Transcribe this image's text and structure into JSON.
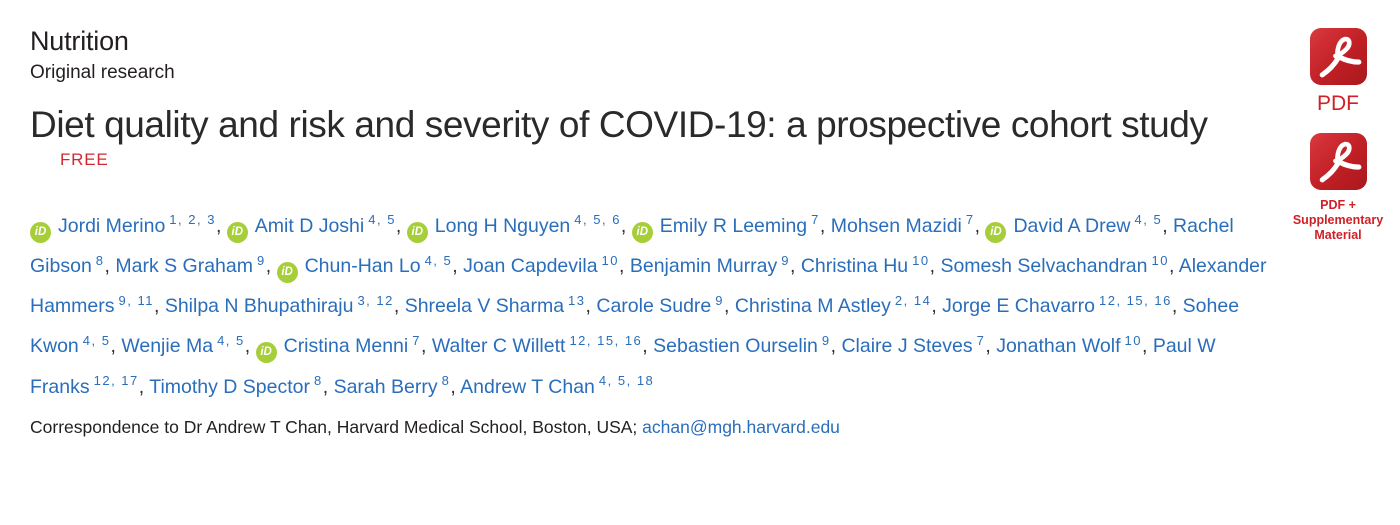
{
  "page": {
    "category": "Nutrition",
    "subcategory": "Original research",
    "title": "Diet quality and risk and severity of COVID-19: a prospective cohort study",
    "free_label": "FREE"
  },
  "authors": [
    {
      "name": "Jordi Merino",
      "orcid": true,
      "sups": "1, 2, 3"
    },
    {
      "name": "Amit D Joshi",
      "orcid": true,
      "sups": "4, 5"
    },
    {
      "name": "Long H Nguyen",
      "orcid": true,
      "sups": "4, 5, 6"
    },
    {
      "name": "Emily R Leeming",
      "orcid": true,
      "sups": "7"
    },
    {
      "name": "Mohsen Mazidi",
      "orcid": false,
      "sups": "7"
    },
    {
      "name": "David A Drew",
      "orcid": true,
      "sups": "4, 5"
    },
    {
      "name": "Rachel Gibson",
      "orcid": false,
      "sups": "8"
    },
    {
      "name": "Mark S Graham",
      "orcid": false,
      "sups": "9"
    },
    {
      "name": "Chun-Han Lo",
      "orcid": true,
      "sups": "4, 5"
    },
    {
      "name": "Joan Capdevila",
      "orcid": false,
      "sups": "10"
    },
    {
      "name": "Benjamin Murray",
      "orcid": false,
      "sups": "9"
    },
    {
      "name": "Christina Hu",
      "orcid": false,
      "sups": "10"
    },
    {
      "name": "Somesh Selvachandran",
      "orcid": false,
      "sups": "10"
    },
    {
      "name": "Alexander Hammers",
      "orcid": false,
      "sups": "9, 11"
    },
    {
      "name": "Shilpa N Bhupathiraju",
      "orcid": false,
      "sups": "3, 12"
    },
    {
      "name": "Shreela V Sharma",
      "orcid": false,
      "sups": "13"
    },
    {
      "name": "Carole Sudre",
      "orcid": false,
      "sups": "9"
    },
    {
      "name": "Christina M Astley",
      "orcid": false,
      "sups": "2, 14"
    },
    {
      "name": "Jorge E Chavarro",
      "orcid": false,
      "sups": "12, 15, 16"
    },
    {
      "name": "Sohee Kwon",
      "orcid": false,
      "sups": "4, 5"
    },
    {
      "name": "Wenjie Ma",
      "orcid": false,
      "sups": "4, 5"
    },
    {
      "name": "Cristina Menni",
      "orcid": true,
      "sups": "7"
    },
    {
      "name": "Walter C Willett",
      "orcid": false,
      "sups": "12, 15, 16"
    },
    {
      "name": "Sebastien Ourselin",
      "orcid": false,
      "sups": "9"
    },
    {
      "name": "Claire J Steves",
      "orcid": false,
      "sups": "7"
    },
    {
      "name": "Jonathan Wolf",
      "orcid": false,
      "sups": "10"
    },
    {
      "name": "Paul W Franks",
      "orcid": false,
      "sups": "12, 17"
    },
    {
      "name": "Timothy D Spector",
      "orcid": false,
      "sups": "8"
    },
    {
      "name": "Sarah Berry",
      "orcid": false,
      "sups": "8"
    },
    {
      "name": "Andrew T Chan",
      "orcid": false,
      "sups": "4, 5, 18"
    }
  ],
  "orcid_icon": {
    "label": "iD",
    "color": "#a6ce39"
  },
  "correspondence": {
    "text": "Correspondence to Dr Andrew T Chan, Harvard Medical School, Boston, USA; ",
    "email": "achan@mgh.harvard.edu"
  },
  "downloads": {
    "pdf_label": "PDF",
    "supp_line1": "PDF +",
    "supp_line2": "Supplementary",
    "supp_line3": "Material"
  },
  "colors": {
    "link_blue": "#2a6ebb",
    "orcid_green": "#a6ce39",
    "accent_red": "#cf2027",
    "text": "#231f20"
  }
}
